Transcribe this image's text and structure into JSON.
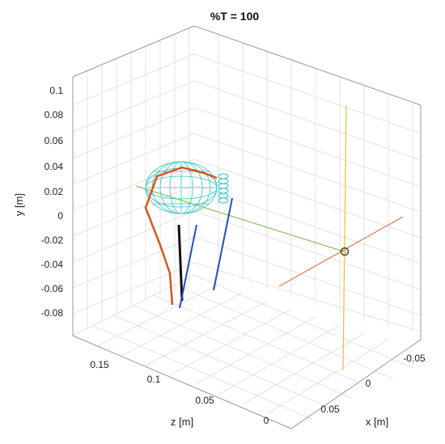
{
  "chart_data": {
    "type": "line",
    "title": "%T = 100",
    "xlabel": "x [m]",
    "ylabel": "y [m]",
    "zlabel": "z [m]",
    "y_ticks": [
      "0.1",
      "0.08",
      "0.06",
      "0.04",
      "0.02",
      "0",
      "-0.02",
      "-0.04",
      "-0.06",
      "-0.08"
    ],
    "z_ticks": [
      "0.15",
      "0.1",
      "0.05",
      "0"
    ],
    "x_ticks": [
      "-0.05",
      "0",
      "0.05"
    ],
    "grid": true,
    "colors": {
      "grid": "#dcdcdc",
      "box": "#9a9a9a",
      "orange_curve": "#d9531e",
      "blue_curve": "#1f4fc4",
      "black_curve": "#111111",
      "mesh": "#33c4c0",
      "axis_orange": "#e0784a",
      "axis_yellow": "#e8bf3a",
      "axis_green": "#8fbf5a",
      "marker": "#4a4a30"
    }
  }
}
